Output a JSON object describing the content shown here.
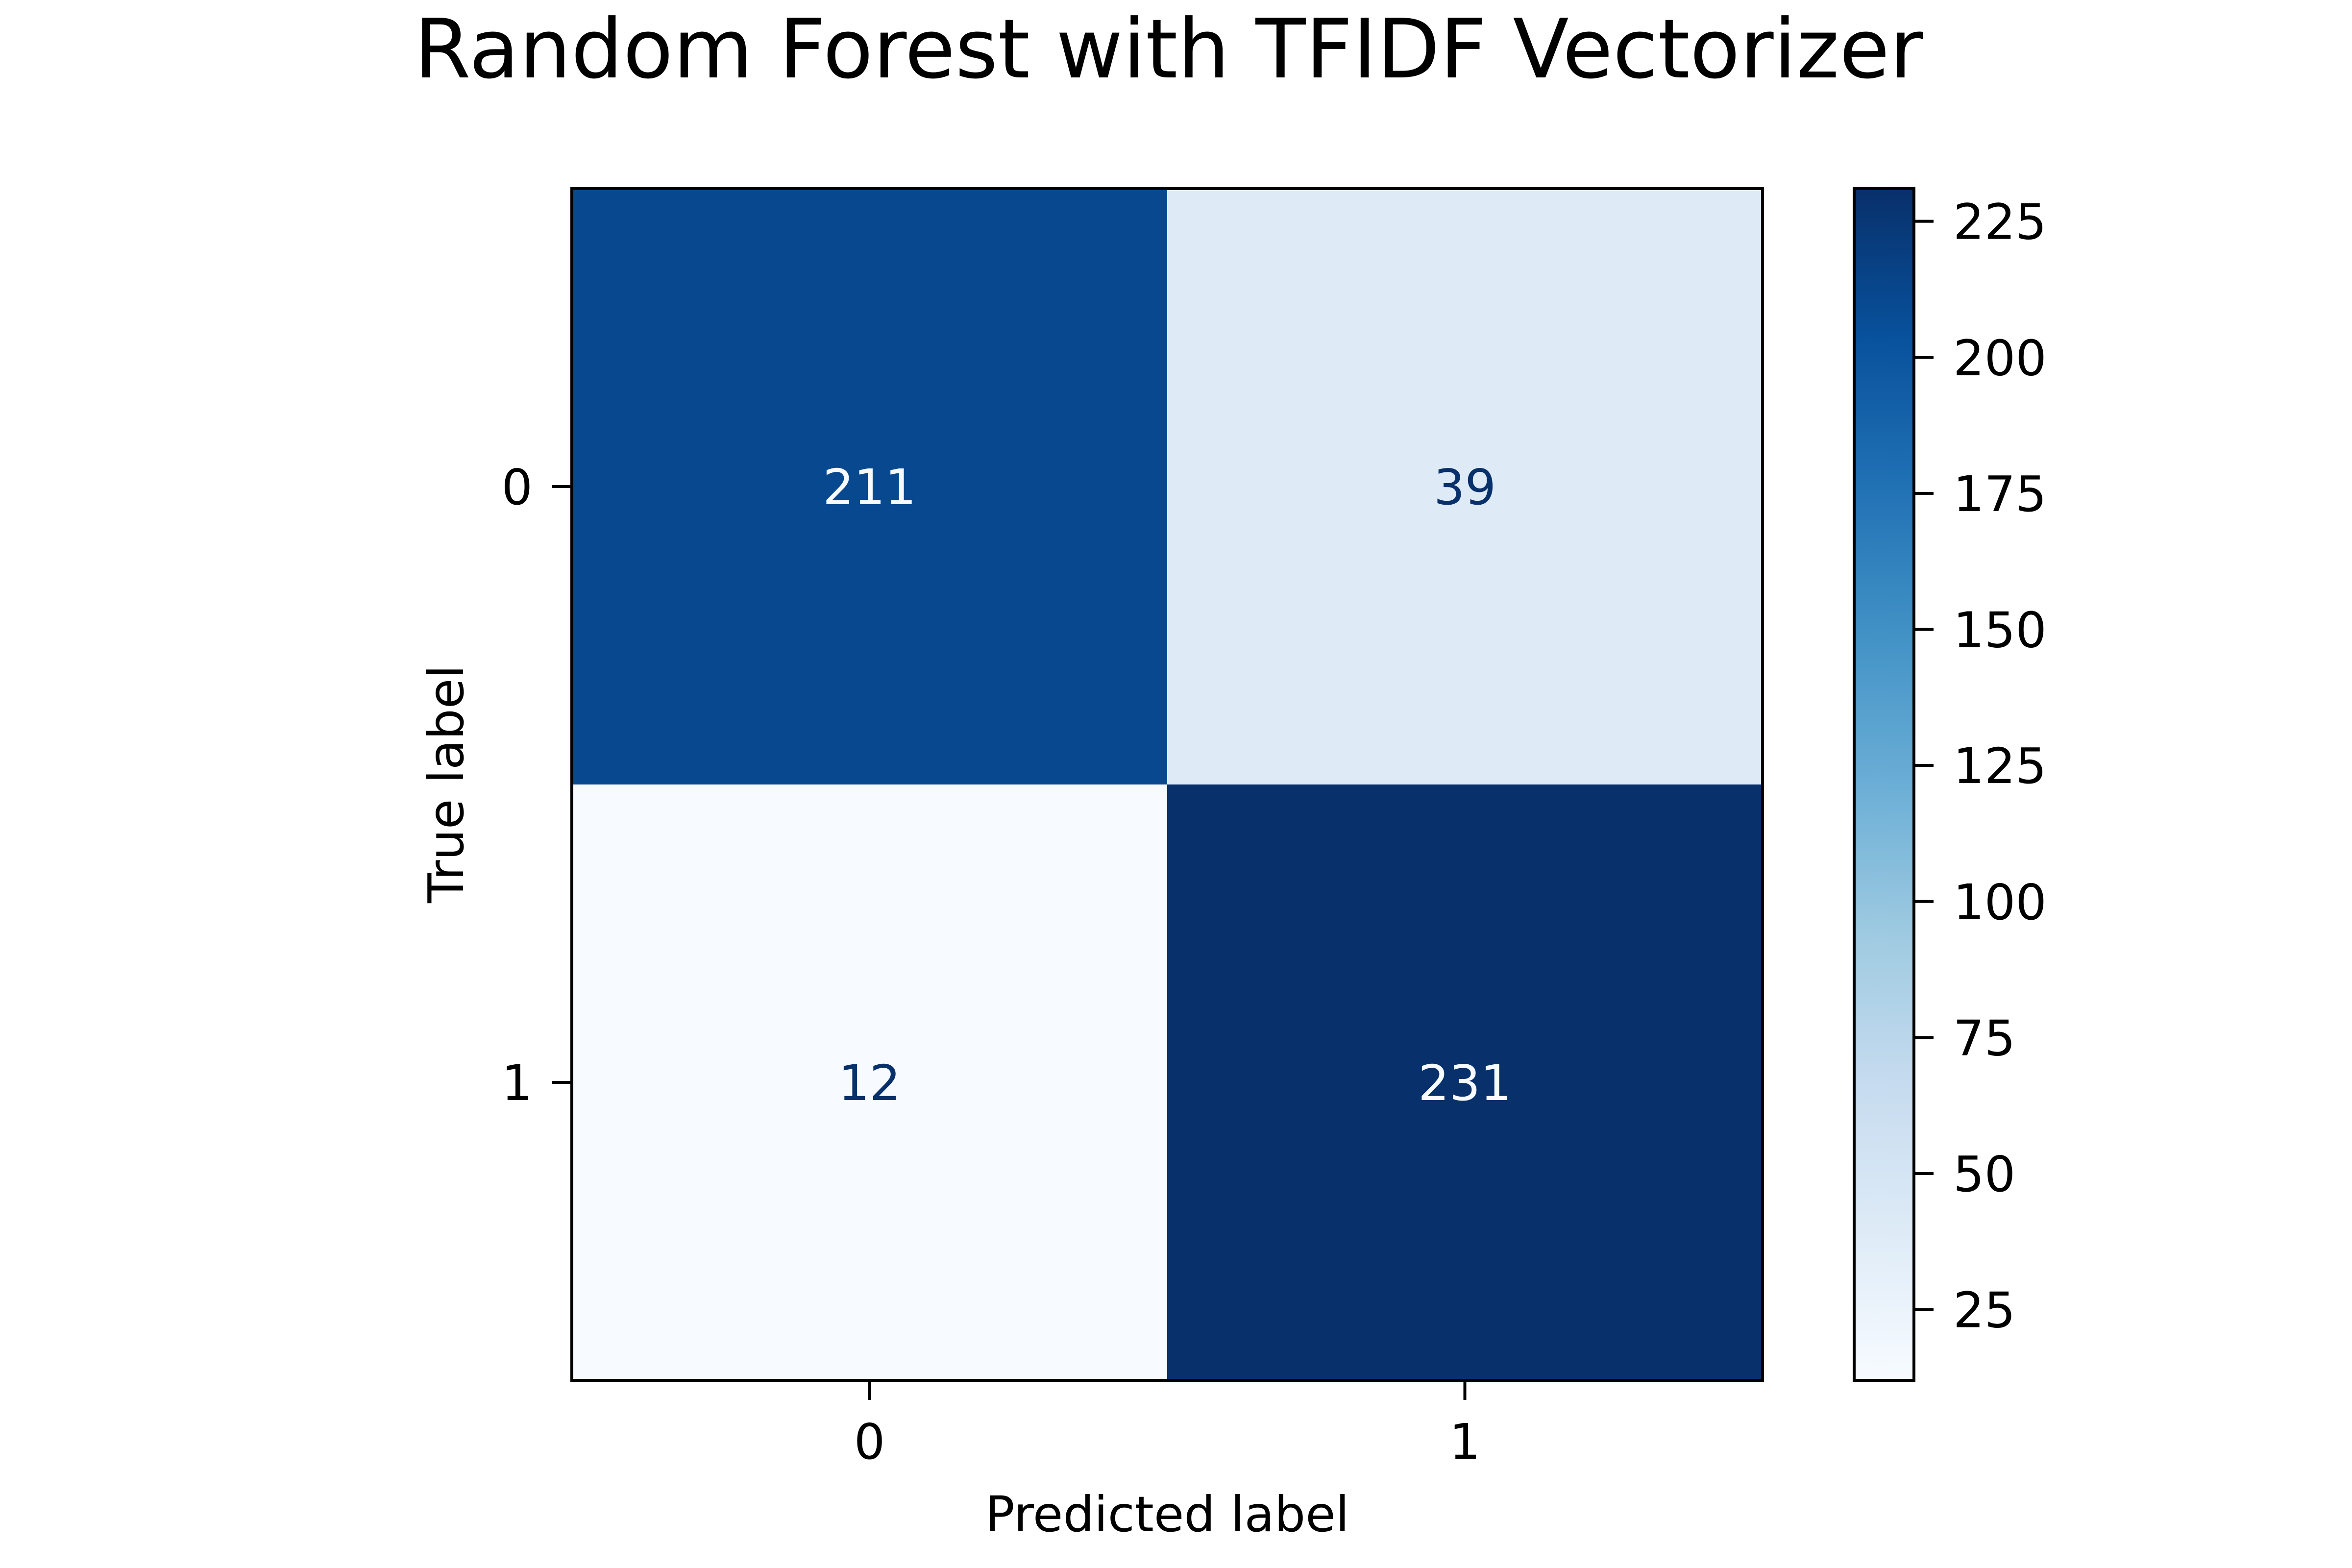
{
  "chart_data": {
    "type": "heatmap",
    "title": "Random Forest with TFIDF Vectorizer",
    "xlabel": "Predicted label",
    "ylabel": "True label",
    "x_categories": [
      "0",
      "1"
    ],
    "y_categories": [
      "0",
      "1"
    ],
    "values": [
      [
        211,
        39
      ],
      [
        12,
        231
      ]
    ],
    "colormap": "Blues",
    "colorbar": {
      "range": [
        12,
        231
      ],
      "ticks": [
        25,
        50,
        75,
        100,
        125,
        150,
        175,
        200,
        225
      ]
    },
    "grid": false
  },
  "colors": {
    "cmap_stops": [
      "#f7fbff",
      "#deebf7",
      "#c6dbef",
      "#9ecae1",
      "#6baed6",
      "#4292c6",
      "#2171b5",
      "#08519c",
      "#08306b"
    ],
    "dark_text": "#08306b",
    "light_text": "#f7fbff"
  }
}
